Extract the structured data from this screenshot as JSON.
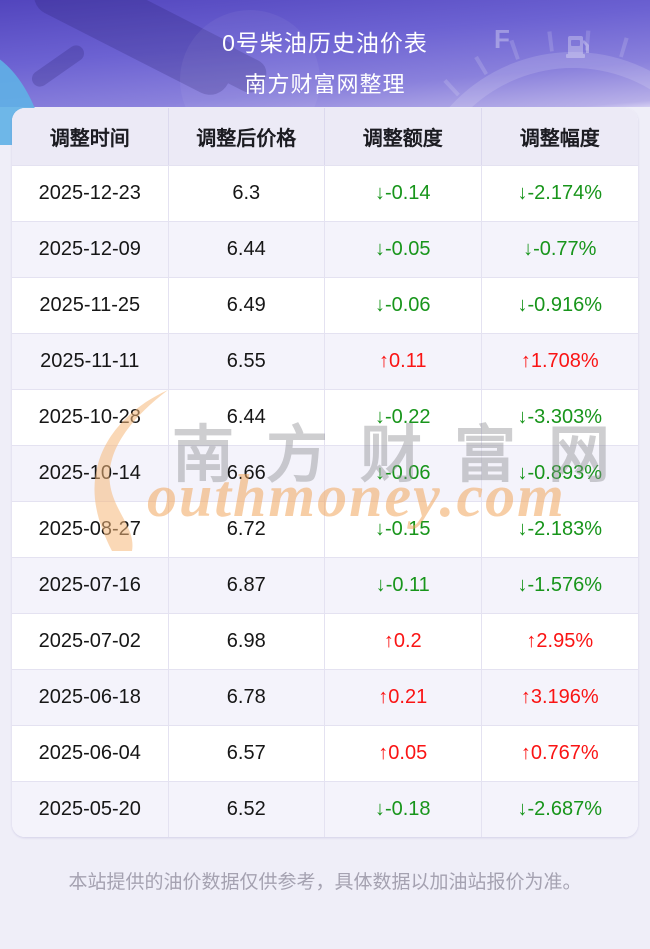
{
  "page": {
    "title": "0号柴油历史油价表",
    "subtitle": "南方财富网整理",
    "footer_note": "本站提供的油价数据仅供参考，具体数据以加油站报价为准。",
    "watermark_cn": "南方财富网",
    "watermark_en": "outhmoney.com"
  },
  "colors": {
    "up_red": "#fa1414",
    "down_green": "#18951b",
    "header_gradient_top": "#5245bd",
    "header_gradient_bottom": "#b7afe8",
    "page_bg": "#efeef8",
    "table_header_bg": "#eceaf6",
    "row_alt_bg": "#f4f3fb",
    "watermark_orange": "#f2a75e"
  },
  "icons": {
    "fuel_gauge_label": "F"
  },
  "table": {
    "columns": [
      "调整时间",
      "调整后价格",
      "调整额度",
      "调整幅度"
    ],
    "rows": [
      {
        "date": "2025-12-23",
        "price": "6.3",
        "change": "↓-0.14",
        "percent": "↓-2.174%",
        "direction": "down"
      },
      {
        "date": "2025-12-09",
        "price": "6.44",
        "change": "↓-0.05",
        "percent": "↓-0.77%",
        "direction": "down"
      },
      {
        "date": "2025-11-25",
        "price": "6.49",
        "change": "↓-0.06",
        "percent": "↓-0.916%",
        "direction": "down"
      },
      {
        "date": "2025-11-11",
        "price": "6.55",
        "change": "↑0.11",
        "percent": "↑1.708%",
        "direction": "up"
      },
      {
        "date": "2025-10-28",
        "price": "6.44",
        "change": "↓-0.22",
        "percent": "↓-3.303%",
        "direction": "down"
      },
      {
        "date": "2025-10-14",
        "price": "6.66",
        "change": "↓-0.06",
        "percent": "↓-0.893%",
        "direction": "down"
      },
      {
        "date": "2025-08-27",
        "price": "6.72",
        "change": "↓-0.15",
        "percent": "↓-2.183%",
        "direction": "down"
      },
      {
        "date": "2025-07-16",
        "price": "6.87",
        "change": "↓-0.11",
        "percent": "↓-1.576%",
        "direction": "down"
      },
      {
        "date": "2025-07-02",
        "price": "6.98",
        "change": "↑0.2",
        "percent": "↑2.95%",
        "direction": "up"
      },
      {
        "date": "2025-06-18",
        "price": "6.78",
        "change": "↑0.21",
        "percent": "↑3.196%",
        "direction": "up"
      },
      {
        "date": "2025-06-04",
        "price": "6.57",
        "change": "↑0.05",
        "percent": "↑0.767%",
        "direction": "up"
      },
      {
        "date": "2025-05-20",
        "price": "6.52",
        "change": "↓-0.18",
        "percent": "↓-2.687%",
        "direction": "down"
      }
    ]
  }
}
